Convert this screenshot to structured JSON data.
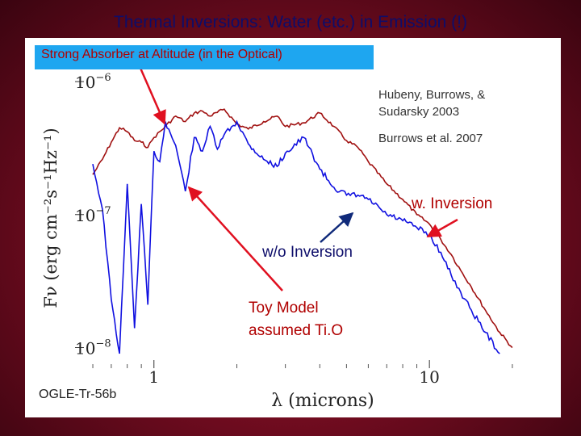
{
  "slide": {
    "title": "Thermal Inversions: Water (etc.) in Emission (!)",
    "callout_absorber": "Strong Absorber at Altitude (in the Optical)",
    "reference_1_line1": "Hubeny, Burrows, &",
    "reference_1_line2": "Sudarsky 2003",
    "reference_2": "Burrows et al. 2007",
    "label_inversion": "w. Inversion",
    "label_no_inversion": "w/o Inversion",
    "toy_model_line1": "Toy Model",
    "toy_model_line2": "assumed Ti.O",
    "star_name": "OGLE-Tr-56b"
  },
  "colors": {
    "background": "#7a0d22",
    "title": "#0d0d6a",
    "callout_fill": "#1ea6f0",
    "callout_text": "#b00000",
    "arrow_red": "#e01020",
    "arrow_navy": "#102a7a",
    "series_inversion": "#a01010",
    "series_no_inversion": "#1010e0"
  },
  "chart_data": {
    "type": "line",
    "xlabel": "λ (microns)",
    "ylabel": "Fν (erg cm⁻²s⁻¹Hz⁻¹)",
    "xscale": "log",
    "yscale": "log",
    "xlim": [
      0.5,
      25
    ],
    "ylim": [
      7e-09,
      1.2e-06
    ],
    "x_ticks": [
      {
        "value": 1,
        "label": "1"
      },
      {
        "value": 10,
        "label": "10"
      }
    ],
    "y_ticks": [
      {
        "value": 1e-06,
        "base": "10",
        "exp": "−6"
      },
      {
        "value": 1e-07,
        "base": "10",
        "exp": "−7"
      },
      {
        "value": 1e-08,
        "base": "10",
        "exp": "−8"
      }
    ],
    "series": [
      {
        "name": "w. Inversion",
        "color": "#a01010",
        "x": [
          0.6,
          0.65,
          0.7,
          0.75,
          0.8,
          0.85,
          0.9,
          0.95,
          1.0,
          1.1,
          1.2,
          1.3,
          1.4,
          1.5,
          1.6,
          1.8,
          2.0,
          2.2,
          2.5,
          2.8,
          3.0,
          3.5,
          4.0,
          4.5,
          5.0,
          5.5,
          6.0,
          7.0,
          8.0,
          9.0,
          10,
          11,
          12,
          13,
          14,
          16,
          18,
          20
        ],
        "y": [
          2e-07,
          2.6e-07,
          3.5e-07,
          4.5e-07,
          4.2e-07,
          3.6e-07,
          3.5e-07,
          3.2e-07,
          3.8e-07,
          4.6e-07,
          5.5e-07,
          5e-07,
          5.8e-07,
          6e-07,
          5.5e-07,
          6.2e-07,
          4.8e-07,
          4.4e-07,
          5e-07,
          5.5e-07,
          4.6e-07,
          4.9e-07,
          5.8e-07,
          4.6e-07,
          3.6e-07,
          3.2e-07,
          2.5e-07,
          1.7e-07,
          1.3e-07,
          1e-07,
          8.5e-08,
          6.5e-08,
          5e-08,
          3.8e-08,
          3e-08,
          1.9e-08,
          1.3e-08,
          1e-08
        ]
      },
      {
        "name": "w/o Inversion",
        "color": "#1010e0",
        "x": [
          0.6,
          0.65,
          0.7,
          0.75,
          0.8,
          0.85,
          0.9,
          0.95,
          1.0,
          1.05,
          1.1,
          1.2,
          1.3,
          1.4,
          1.5,
          1.6,
          1.7,
          1.8,
          2.0,
          2.2,
          2.5,
          2.8,
          3.0,
          3.5,
          4.0,
          4.5,
          5.0,
          5.5,
          6.0,
          7.0,
          8.0,
          9.0,
          10,
          11,
          12,
          13,
          14,
          16,
          18
        ],
        "y": [
          2.4e-07,
          1.1e-07,
          2.3e-08,
          9e-09,
          1.7e-07,
          1.4e-08,
          1.2e-07,
          2.1e-08,
          3e-07,
          2.5e-07,
          5e-07,
          3.3e-07,
          1.5e-07,
          3.8e-07,
          3e-07,
          4.6e-07,
          3.1e-07,
          4e-07,
          5e-07,
          3.4e-07,
          2.6e-07,
          2.3e-07,
          2.9e-07,
          3.8e-07,
          2.2e-07,
          1.6e-07,
          1.4e-07,
          1.4e-07,
          1.3e-07,
          1e-07,
          9e-08,
          8e-08,
          7e-08,
          5.2e-08,
          3.5e-08,
          2.6e-08,
          2e-08,
          1.3e-08,
          9e-09
        ]
      }
    ]
  }
}
